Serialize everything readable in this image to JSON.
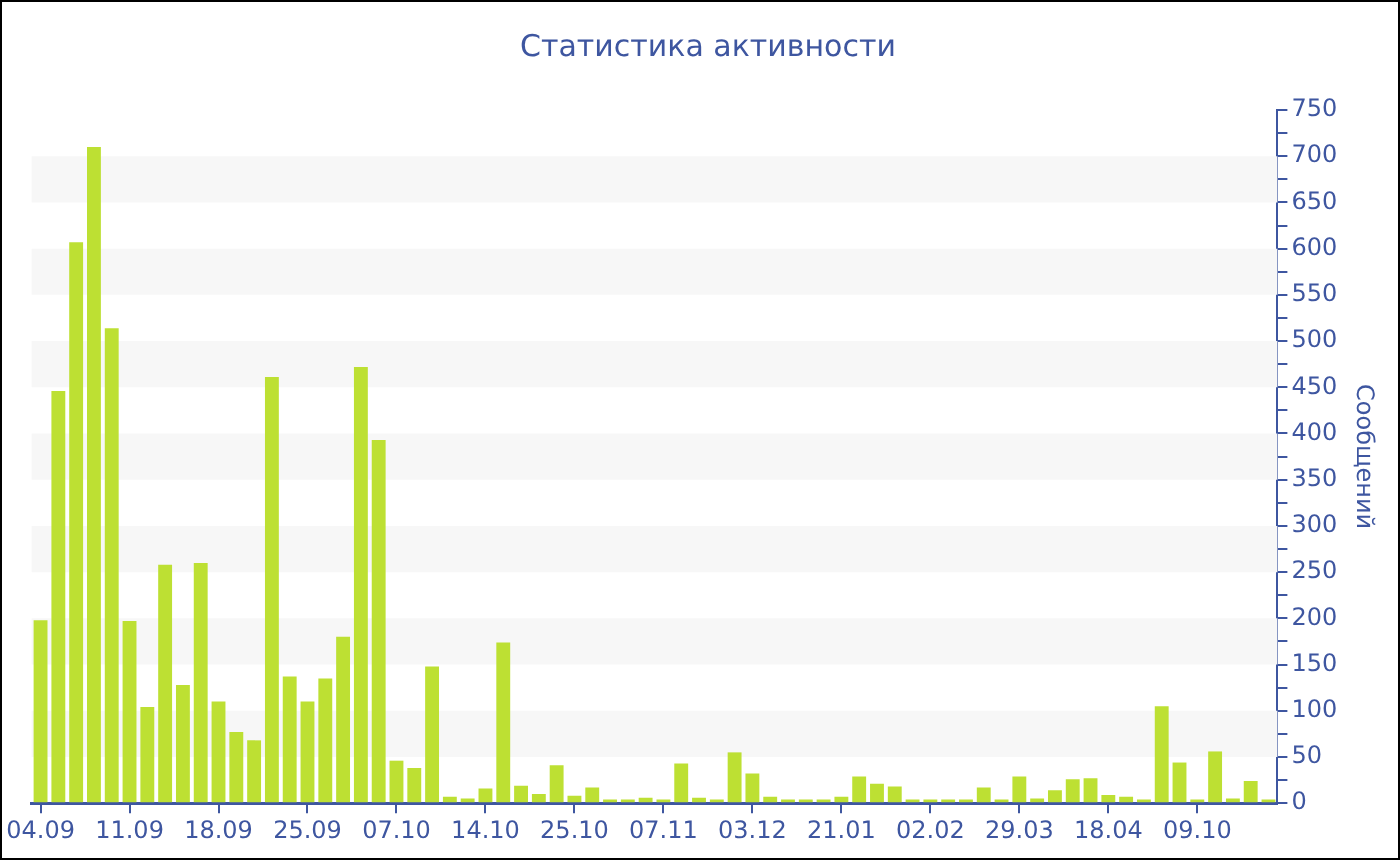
{
  "chart_data": {
    "type": "bar",
    "title": "Статистика активности",
    "ylabel": "Сообщений",
    "categories": [
      "04.09",
      null,
      null,
      null,
      null,
      "11.09",
      null,
      null,
      null,
      null,
      "18.09",
      null,
      null,
      null,
      null,
      "25.09",
      null,
      null,
      null,
      null,
      "07.10",
      null,
      null,
      null,
      null,
      "14.10",
      null,
      null,
      null,
      null,
      "25.10",
      null,
      null,
      null,
      null,
      "07.11",
      null,
      null,
      null,
      null,
      "03.12",
      null,
      null,
      null,
      null,
      "21.01",
      null,
      null,
      null,
      null,
      "02.02",
      null,
      null,
      null,
      null,
      "29.03",
      null,
      null,
      null,
      null,
      "18.04",
      null,
      null,
      null,
      null,
      "09.10",
      null,
      null,
      null,
      null
    ],
    "values": [
      198,
      446,
      607,
      710,
      514,
      197,
      104,
      258,
      128,
      260,
      110,
      77,
      68,
      461,
      137,
      110,
      135,
      180,
      472,
      393,
      46,
      38,
      148,
      7,
      5,
      16,
      174,
      19,
      10,
      41,
      8,
      17,
      4,
      4,
      6,
      4,
      43,
      6,
      4,
      55,
      32,
      7,
      4,
      4,
      4,
      7,
      29,
      21,
      18,
      4,
      4,
      4,
      4,
      17,
      4,
      29,
      5,
      14,
      26,
      27,
      9,
      7,
      4,
      105,
      44,
      4,
      56,
      5,
      24,
      4
    ],
    "color": "#bde033",
    "ylim": [
      0,
      750
    ],
    "yticks": [
      0,
      {
        "value": 25,
        "label": null
      },
      50,
      {
        "value": 75,
        "label": null
      },
      100,
      {
        "value": 125,
        "label": null
      },
      150,
      {
        "value": 175,
        "label": null
      },
      200,
      {
        "value": 225,
        "label": null
      },
      250,
      {
        "value": 275,
        "label": null
      },
      300,
      {
        "value": 325,
        "label": null
      },
      350,
      {
        "value": 375,
        "label": null
      },
      400,
      {
        "value": 425,
        "label": null
      },
      450,
      {
        "value": 475,
        "label": null
      },
      500,
      {
        "value": 525,
        "label": null
      },
      550,
      {
        "value": 575,
        "label": null
      },
      600,
      {
        "value": 625,
        "label": null
      },
      650,
      {
        "value": 675,
        "label": null
      },
      700,
      {
        "value": 725,
        "label": null
      },
      750
    ],
    "bands": [
      {
        "axis": "y",
        "from": 50,
        "to": 100,
        "color": "#f7f7f7"
      },
      {
        "axis": "y",
        "from": 150,
        "to": 200,
        "color": "#f7f7f7"
      },
      {
        "axis": "y",
        "from": 250,
        "to": 300,
        "color": "#f7f7f7"
      },
      {
        "axis": "y",
        "from": 350,
        "to": 400,
        "color": "#f7f7f7"
      },
      {
        "axis": "y",
        "from": 450,
        "to": 500,
        "color": "#f7f7f7"
      },
      {
        "axis": "y",
        "from": 550,
        "to": 600,
        "color": "#f7f7f7"
      },
      {
        "axis": "y",
        "from": 650,
        "to": 700,
        "color": "#f7f7f7"
      }
    ]
  }
}
